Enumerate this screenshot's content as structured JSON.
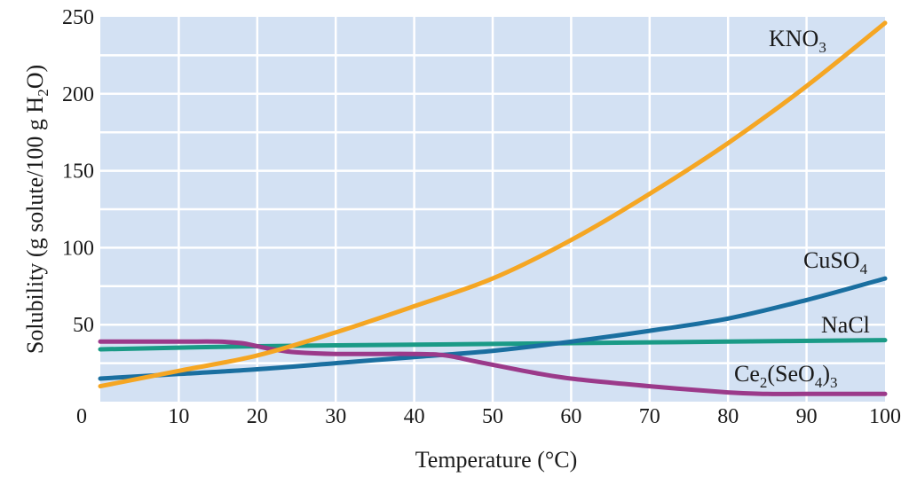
{
  "chart_data": {
    "type": "line",
    "xlabel": "Temperature (°C)",
    "ylabel": {
      "pre": "Solubility (g solute/100 g H",
      "sub": "2",
      "post": "O)"
    },
    "xlim": [
      0,
      100
    ],
    "ylim": [
      0,
      250
    ],
    "x_ticks": [
      0,
      10,
      20,
      30,
      40,
      50,
      60,
      70,
      80,
      90,
      100
    ],
    "y_ticks": [
      0,
      50,
      100,
      150,
      200,
      250
    ],
    "x_grid_step": 10,
    "y_grid_step": 25,
    "grid": true,
    "colors": {
      "plot_background": "#d3e1f3",
      "grid": "#ffffff"
    },
    "series": [
      {
        "name": "KNO3",
        "label_parts": [
          {
            "t": "KNO"
          },
          {
            "t": "3",
            "sub": true
          }
        ],
        "color": "#f5a623",
        "x": [
          0,
          10,
          20,
          30,
          40,
          50,
          60,
          70,
          80,
          90,
          100
        ],
        "y": [
          10,
          20,
          30,
          45,
          62,
          80,
          105,
          135,
          168,
          205,
          246
        ]
      },
      {
        "name": "CuSO4",
        "label_parts": [
          {
            "t": "CuSO"
          },
          {
            "t": "4",
            "sub": true
          }
        ],
        "color": "#1a6fa0",
        "x": [
          0,
          10,
          20,
          30,
          40,
          50,
          60,
          70,
          80,
          90,
          100
        ],
        "y": [
          15,
          18,
          21,
          25,
          29,
          33,
          39,
          46,
          54,
          66,
          80
        ]
      },
      {
        "name": "NaCl",
        "label_parts": [
          {
            "t": "NaCl"
          }
        ],
        "color": "#1a9a86",
        "x": [
          0,
          20,
          40,
          60,
          80,
          100
        ],
        "y": [
          34,
          36,
          37,
          38,
          39,
          40
        ]
      },
      {
        "name": "Ce2(SeO4)3",
        "label_parts": [
          {
            "t": "Ce"
          },
          {
            "t": "2",
            "sub": true
          },
          {
            "t": "(SeO"
          },
          {
            "t": "4",
            "sub": true
          },
          {
            "t": ")"
          },
          {
            "t": "3",
            "sub": true
          }
        ],
        "color": "#9b3a8a",
        "x": [
          0,
          10,
          15,
          18,
          20,
          22,
          25,
          30,
          40,
          44,
          48,
          55,
          60,
          70,
          80,
          85,
          90,
          100
        ],
        "y": [
          39,
          39,
          39,
          38,
          36,
          34,
          32,
          31,
          31,
          30,
          26,
          19,
          15,
          10,
          6,
          5,
          5,
          5
        ]
      }
    ]
  }
}
